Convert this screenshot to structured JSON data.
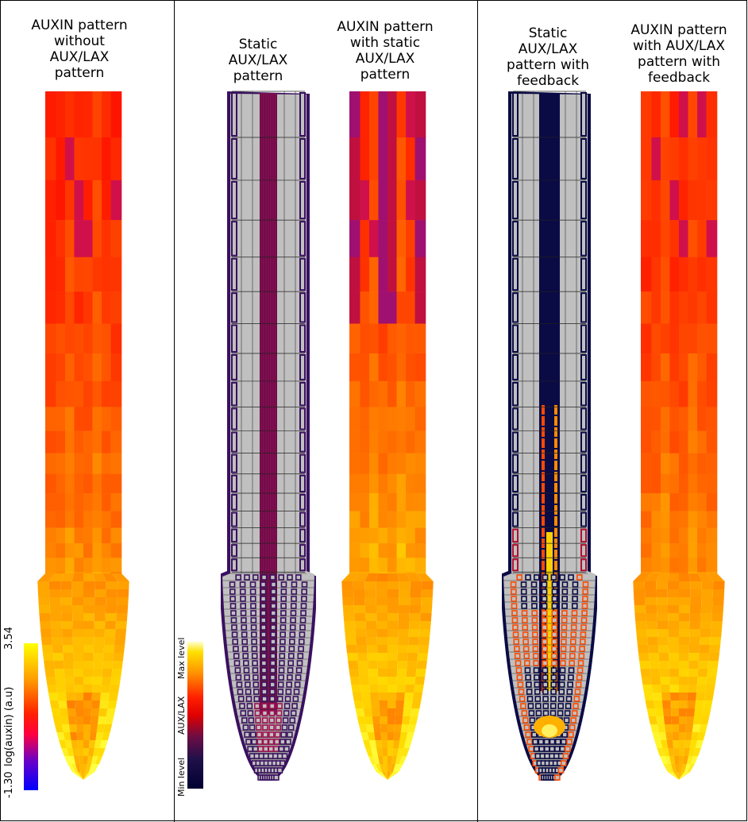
{
  "panel1": {
    "title": "AUXIN pattern\nwithout\nAUX/LAX\npattern",
    "colorbar": {
      "min": "-1.30",
      "max": "3.54",
      "label": "log(auxin) (a.u)"
    }
  },
  "panel2": {
    "title_a": "Static\nAUX/LAX\npattern",
    "title_b": "AUXIN pattern\nwith static\nAUX/LAX\npattern",
    "colorbar": {
      "min": "Min level",
      "max": "Max level",
      "label": "AUX/LAX"
    }
  },
  "panel3": {
    "title_a": "Static\nAUX/LAX\npattern with\nfeedback",
    "title_b": "AUXIN pattern\nwith AUX/LAX\npattern with\nfeedback"
  },
  "colors": {
    "hot_red": "#ff1a00",
    "hot_orange": "#ff7a00",
    "hot_yellow": "#ffff00",
    "purple": "#7a1fa0",
    "dark_navy": "#0a0a45",
    "cell_gray": "#c0c0c0",
    "maroon": "#6a0d45"
  }
}
